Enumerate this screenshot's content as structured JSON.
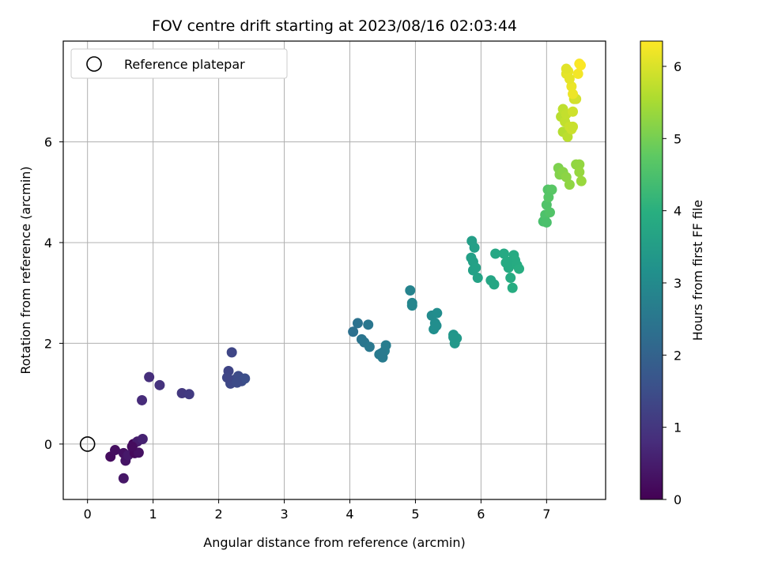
{
  "chart_data": {
    "type": "scatter",
    "title": "FOV centre drift starting at 2023/08/16 02:03:44",
    "xlabel": "Angular distance from reference (arcmin)",
    "ylabel": "Rotation from reference (arcmin)",
    "xlim": [
      -0.37,
      7.9
    ],
    "ylim": [
      -1.1,
      8.0
    ],
    "xticks": [
      0,
      1,
      2,
      3,
      4,
      5,
      6,
      7
    ],
    "yticks": [
      0,
      2,
      4,
      6
    ],
    "grid": true,
    "legend": {
      "placement": "top-left",
      "entries": [
        {
          "label": "Reference platepar",
          "marker": "open-circle"
        }
      ]
    },
    "reference_point": {
      "x": 0,
      "y": 0
    },
    "colorbar": {
      "label": "Hours from first FF file",
      "min": 0,
      "max": 6.35,
      "ticks": [
        0,
        1,
        2,
        3,
        4,
        5,
        6
      ],
      "colormap": "viridis"
    },
    "points": [
      {
        "x": 0.35,
        "y": -0.25,
        "h": 0.2
      },
      {
        "x": 0.42,
        "y": -0.12,
        "h": 0.25
      },
      {
        "x": 0.55,
        "y": -0.18,
        "h": 0.3
      },
      {
        "x": 0.58,
        "y": -0.33,
        "h": 0.35
      },
      {
        "x": 0.55,
        "y": -0.68,
        "h": 0.4
      },
      {
        "x": 0.62,
        "y": -0.22,
        "h": 0.45
      },
      {
        "x": 0.7,
        "y": 0.0,
        "h": 0.1
      },
      {
        "x": 0.72,
        "y": -0.18,
        "h": 0.15
      },
      {
        "x": 0.78,
        "y": -0.17,
        "h": 0.3
      },
      {
        "x": 0.76,
        "y": 0.05,
        "h": 0.5
      },
      {
        "x": 0.84,
        "y": 0.1,
        "h": 0.6
      },
      {
        "x": 0.68,
        "y": -0.05,
        "h": 0.2
      },
      {
        "x": 0.83,
        "y": 0.87,
        "h": 0.8
      },
      {
        "x": 0.94,
        "y": 1.33,
        "h": 0.85
      },
      {
        "x": 1.1,
        "y": 1.17,
        "h": 0.95
      },
      {
        "x": 1.44,
        "y": 1.01,
        "h": 1.05
      },
      {
        "x": 1.55,
        "y": 0.99,
        "h": 1.1
      },
      {
        "x": 2.15,
        "y": 1.45,
        "h": 1.3
      },
      {
        "x": 2.2,
        "y": 1.82,
        "h": 1.35
      },
      {
        "x": 2.25,
        "y": 1.28,
        "h": 1.4
      },
      {
        "x": 2.18,
        "y": 1.2,
        "h": 1.4
      },
      {
        "x": 2.3,
        "y": 1.35,
        "h": 1.45
      },
      {
        "x": 2.35,
        "y": 1.25,
        "h": 1.5
      },
      {
        "x": 2.4,
        "y": 1.3,
        "h": 1.55
      },
      {
        "x": 2.28,
        "y": 1.22,
        "h": 1.45
      },
      {
        "x": 2.13,
        "y": 1.32,
        "h": 1.35
      },
      {
        "x": 4.05,
        "y": 2.23,
        "h": 2.35
      },
      {
        "x": 4.12,
        "y": 2.4,
        "h": 2.4
      },
      {
        "x": 4.18,
        "y": 2.08,
        "h": 2.45
      },
      {
        "x": 4.22,
        "y": 2.02,
        "h": 2.5
      },
      {
        "x": 4.28,
        "y": 2.37,
        "h": 2.5
      },
      {
        "x": 4.3,
        "y": 1.93,
        "h": 2.55
      },
      {
        "x": 4.45,
        "y": 1.78,
        "h": 2.6
      },
      {
        "x": 4.5,
        "y": 1.72,
        "h": 2.65
      },
      {
        "x": 4.53,
        "y": 1.85,
        "h": 2.7
      },
      {
        "x": 4.55,
        "y": 1.96,
        "h": 2.7
      },
      {
        "x": 4.48,
        "y": 1.8,
        "h": 2.62
      },
      {
        "x": 4.92,
        "y": 3.05,
        "h": 2.85
      },
      {
        "x": 4.95,
        "y": 2.8,
        "h": 2.9
      },
      {
        "x": 4.95,
        "y": 2.75,
        "h": 2.92
      },
      {
        "x": 5.25,
        "y": 2.55,
        "h": 3.05
      },
      {
        "x": 5.3,
        "y": 2.4,
        "h": 3.1
      },
      {
        "x": 5.28,
        "y": 2.28,
        "h": 3.15
      },
      {
        "x": 5.33,
        "y": 2.6,
        "h": 3.1
      },
      {
        "x": 5.32,
        "y": 2.35,
        "h": 3.12
      },
      {
        "x": 5.58,
        "y": 2.17,
        "h": 3.35
      },
      {
        "x": 5.6,
        "y": 2.0,
        "h": 3.4
      },
      {
        "x": 5.63,
        "y": 2.1,
        "h": 3.42
      },
      {
        "x": 5.58,
        "y": 2.12,
        "h": 3.38
      },
      {
        "x": 5.86,
        "y": 4.03,
        "h": 3.55
      },
      {
        "x": 5.9,
        "y": 3.9,
        "h": 3.58
      },
      {
        "x": 5.85,
        "y": 3.7,
        "h": 3.6
      },
      {
        "x": 5.88,
        "y": 3.62,
        "h": 3.62
      },
      {
        "x": 5.92,
        "y": 3.5,
        "h": 3.65
      },
      {
        "x": 5.95,
        "y": 3.3,
        "h": 3.68
      },
      {
        "x": 5.88,
        "y": 3.45,
        "h": 3.63
      },
      {
        "x": 6.15,
        "y": 3.25,
        "h": 3.75
      },
      {
        "x": 6.2,
        "y": 3.17,
        "h": 3.78
      },
      {
        "x": 6.22,
        "y": 3.78,
        "h": 3.8
      },
      {
        "x": 6.35,
        "y": 3.78,
        "h": 3.85
      },
      {
        "x": 6.38,
        "y": 3.6,
        "h": 3.88
      },
      {
        "x": 6.42,
        "y": 3.5,
        "h": 3.9
      },
      {
        "x": 6.45,
        "y": 3.3,
        "h": 3.92
      },
      {
        "x": 6.48,
        "y": 3.1,
        "h": 3.95
      },
      {
        "x": 6.5,
        "y": 3.75,
        "h": 3.9
      },
      {
        "x": 6.55,
        "y": 3.55,
        "h": 3.95
      },
      {
        "x": 6.58,
        "y": 3.48,
        "h": 3.98
      },
      {
        "x": 6.52,
        "y": 3.65,
        "h": 3.92
      },
      {
        "x": 6.4,
        "y": 3.62,
        "h": 3.88
      },
      {
        "x": 6.95,
        "y": 4.42,
        "h": 4.5
      },
      {
        "x": 6.98,
        "y": 4.55,
        "h": 4.55
      },
      {
        "x": 7.0,
        "y": 4.75,
        "h": 4.6
      },
      {
        "x": 7.02,
        "y": 5.05,
        "h": 4.65
      },
      {
        "x": 7.05,
        "y": 4.6,
        "h": 4.62
      },
      {
        "x": 7.0,
        "y": 4.4,
        "h": 4.52
      },
      {
        "x": 7.08,
        "y": 5.05,
        "h": 4.7
      },
      {
        "x": 7.03,
        "y": 4.9,
        "h": 4.68
      },
      {
        "x": 7.18,
        "y": 5.48,
        "h": 5.1
      },
      {
        "x": 7.2,
        "y": 5.35,
        "h": 5.15
      },
      {
        "x": 7.25,
        "y": 5.4,
        "h": 5.2
      },
      {
        "x": 7.3,
        "y": 5.3,
        "h": 5.25
      },
      {
        "x": 7.35,
        "y": 5.15,
        "h": 5.28
      },
      {
        "x": 7.45,
        "y": 5.55,
        "h": 5.3
      },
      {
        "x": 7.5,
        "y": 5.55,
        "h": 5.32
      },
      {
        "x": 7.5,
        "y": 5.4,
        "h": 5.35
      },
      {
        "x": 7.53,
        "y": 5.22,
        "h": 5.38
      },
      {
        "x": 7.22,
        "y": 6.5,
        "h": 5.7
      },
      {
        "x": 7.25,
        "y": 6.65,
        "h": 5.75
      },
      {
        "x": 7.25,
        "y": 6.2,
        "h": 5.65
      },
      {
        "x": 7.28,
        "y": 6.4,
        "h": 5.78
      },
      {
        "x": 7.3,
        "y": 6.55,
        "h": 5.8
      },
      {
        "x": 7.32,
        "y": 6.1,
        "h": 5.72
      },
      {
        "x": 7.35,
        "y": 6.3,
        "h": 5.85
      },
      {
        "x": 7.38,
        "y": 6.25,
        "h": 5.88
      },
      {
        "x": 7.4,
        "y": 6.6,
        "h": 5.9
      },
      {
        "x": 7.42,
        "y": 6.85,
        "h": 5.92
      },
      {
        "x": 7.45,
        "y": 6.85,
        "h": 5.95
      },
      {
        "x": 7.4,
        "y": 6.3,
        "h": 5.85
      },
      {
        "x": 7.3,
        "y": 7.35,
        "h": 6.1
      },
      {
        "x": 7.33,
        "y": 7.4,
        "h": 6.15
      },
      {
        "x": 7.38,
        "y": 7.1,
        "h": 6.18
      },
      {
        "x": 7.4,
        "y": 6.95,
        "h": 6.2
      },
      {
        "x": 7.48,
        "y": 7.35,
        "h": 6.25
      },
      {
        "x": 7.5,
        "y": 7.55,
        "h": 6.3
      },
      {
        "x": 7.52,
        "y": 7.52,
        "h": 6.33
      },
      {
        "x": 7.35,
        "y": 7.25,
        "h": 6.12
      },
      {
        "x": 7.3,
        "y": 7.45,
        "h": 6.08
      }
    ]
  }
}
